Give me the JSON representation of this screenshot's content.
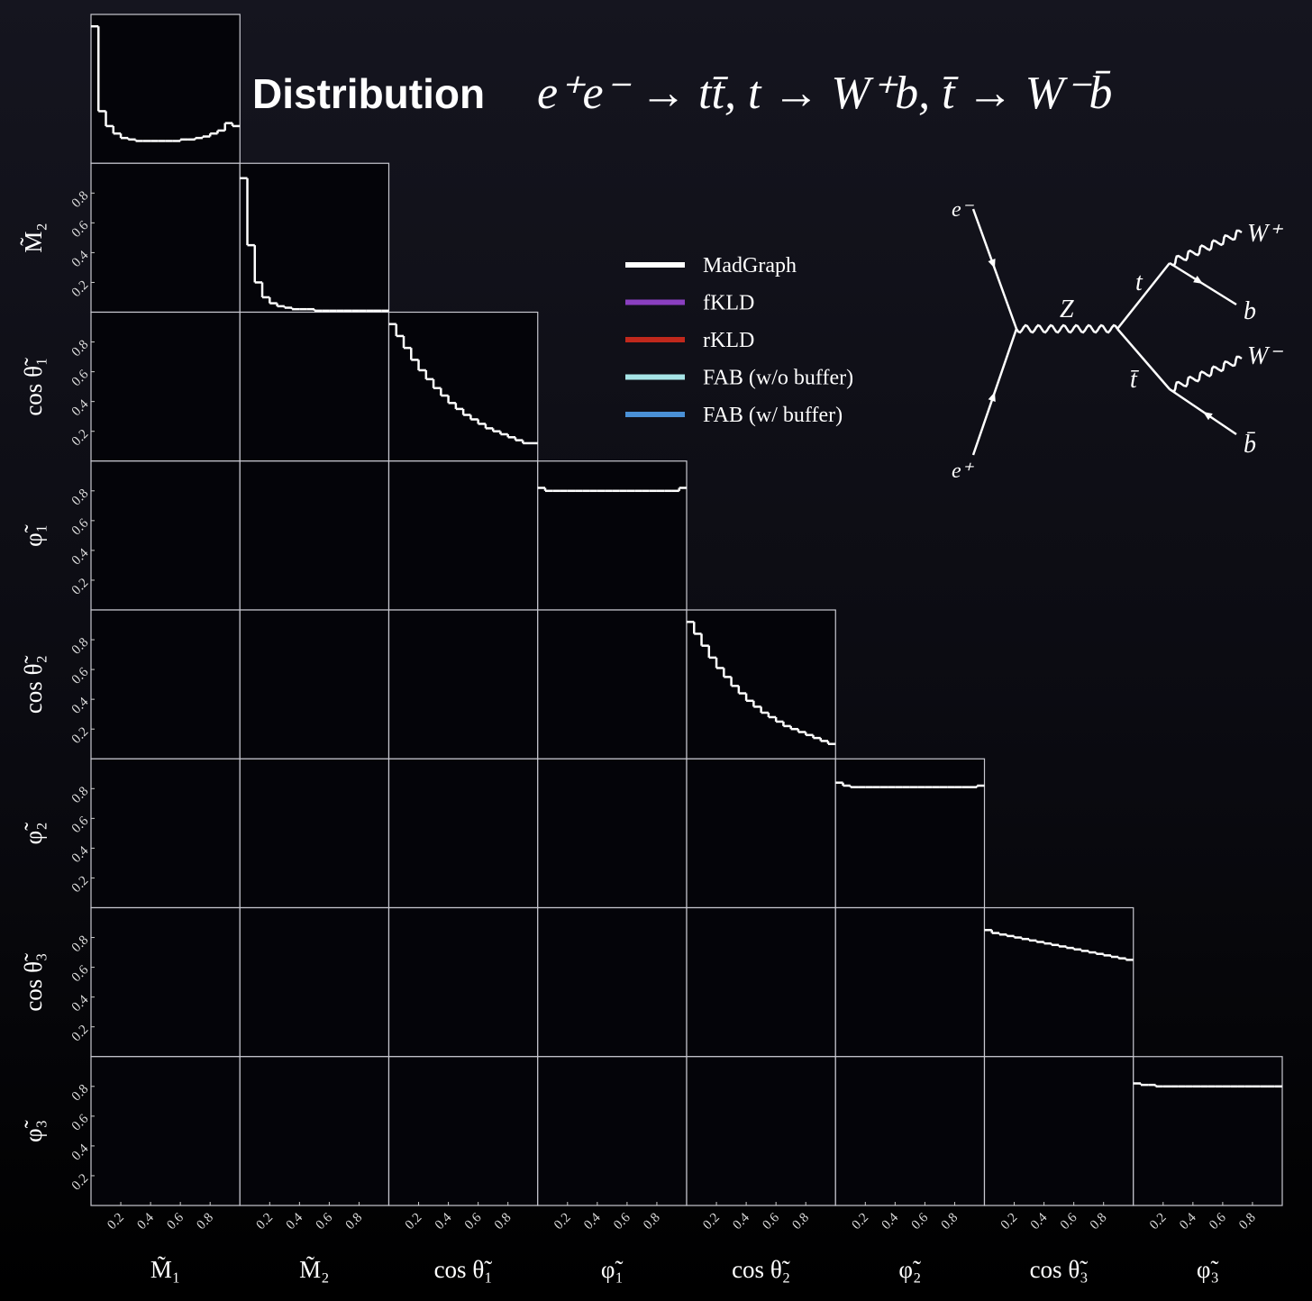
{
  "chart_data": {
    "type": "corner",
    "title": "Distribution",
    "title_math": "e⁺e⁻ → tt̄, t → W⁺b, t̄ → W⁻b̄",
    "variables": [
      "M̃₁",
      "M̃₂",
      "cos θ̃₁",
      "φ̃₁",
      "cos θ̃₂",
      "φ̃₂",
      "cos θ̃₃",
      "φ̃₃"
    ],
    "lim": [
      0,
      1
    ],
    "ticks": [
      0.2,
      0.4,
      0.6,
      0.8
    ],
    "series": [
      {
        "name": "MadGraph",
        "color": "#ffffff"
      },
      {
        "name": "fKLD",
        "color": "#8a3fc0"
      },
      {
        "name": "rKLD",
        "color": "#c0281c"
      },
      {
        "name": "FAB (w/o buffer)",
        "color": "#a6e4e6"
      },
      {
        "name": "FAB (w/ buffer)",
        "color": "#4a90d6"
      }
    ],
    "histograms": [
      [
        0.92,
        0.35,
        0.25,
        0.2,
        0.17,
        0.16,
        0.15,
        0.15,
        0.15,
        0.15,
        0.15,
        0.15,
        0.16,
        0.16,
        0.17,
        0.18,
        0.2,
        0.22,
        0.27,
        0.25
      ],
      [
        0.9,
        0.45,
        0.2,
        0.1,
        0.06,
        0.04,
        0.03,
        0.02,
        0.02,
        0.02,
        0.01,
        0.01,
        0.01,
        0.01,
        0.01,
        0.01,
        0.01,
        0.01,
        0.01,
        0.01
      ],
      [
        0.92,
        0.84,
        0.76,
        0.68,
        0.61,
        0.55,
        0.49,
        0.44,
        0.39,
        0.35,
        0.31,
        0.28,
        0.25,
        0.22,
        0.2,
        0.18,
        0.16,
        0.14,
        0.12,
        0.12
      ],
      [
        0.82,
        0.8,
        0.8,
        0.8,
        0.8,
        0.8,
        0.8,
        0.8,
        0.8,
        0.8,
        0.8,
        0.8,
        0.8,
        0.8,
        0.8,
        0.8,
        0.8,
        0.8,
        0.8,
        0.82
      ],
      [
        0.92,
        0.84,
        0.76,
        0.68,
        0.61,
        0.55,
        0.49,
        0.44,
        0.39,
        0.35,
        0.31,
        0.28,
        0.25,
        0.22,
        0.2,
        0.18,
        0.16,
        0.14,
        0.12,
        0.1
      ],
      [
        0.84,
        0.82,
        0.81,
        0.81,
        0.81,
        0.81,
        0.81,
        0.81,
        0.81,
        0.81,
        0.81,
        0.81,
        0.81,
        0.81,
        0.81,
        0.81,
        0.81,
        0.81,
        0.81,
        0.82
      ],
      [
        0.85,
        0.83,
        0.82,
        0.81,
        0.8,
        0.79,
        0.78,
        0.77,
        0.76,
        0.75,
        0.74,
        0.73,
        0.72,
        0.71,
        0.7,
        0.69,
        0.68,
        0.67,
        0.66,
        0.65
      ],
      [
        0.82,
        0.81,
        0.81,
        0.8,
        0.8,
        0.8,
        0.8,
        0.8,
        0.8,
        0.8,
        0.8,
        0.8,
        0.8,
        0.8,
        0.8,
        0.8,
        0.8,
        0.8,
        0.8,
        0.8
      ]
    ],
    "diagram": {
      "e_minus": "e⁻",
      "e_plus": "e⁺",
      "z": "Z",
      "t": "t",
      "tbar": "t̄",
      "w_plus": "W⁺",
      "w_minus": "W⁻",
      "b": "b",
      "bbar": "b̄"
    }
  }
}
